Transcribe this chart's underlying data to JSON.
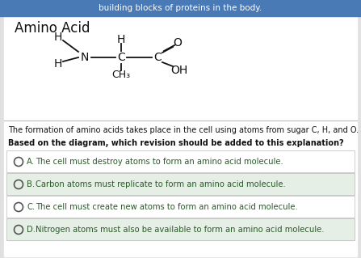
{
  "header_text": "building blocks of proteins in the body.",
  "header_bg": "#4a7ab5",
  "header_text_color": "#ffffff",
  "title": "Amino Acid",
  "title_fontsize": 12,
  "body_bg": "#e0e0e0",
  "white_bg": "#ffffff",
  "question_text1": "The formation of amino acids takes place in the cell using atoms from sugar C, H, and O.",
  "question_text2": "Based on the diagram, which revision should be added to this explanation?",
  "options": [
    {
      "label": "A.",
      "text": "The cell must destroy atoms to form an amino acid molecule."
    },
    {
      "label": "B.",
      "text": "Carbon atoms must replicate to form an amino acid molecule."
    },
    {
      "label": "C.",
      "text": "The cell must create new atoms to form an amino acid molecule."
    },
    {
      "label": "D.",
      "text": "Nitrogen atoms must also be available to form an amino acid molecule."
    }
  ],
  "option_bg_even": "#e6efe6",
  "option_bg_odd": "#ffffff",
  "divider_color": "#bbbbbb",
  "text_color": "#111111",
  "option_text_color": "#2a5a2a",
  "radio_color": "#555555",
  "formula_color": "#111111"
}
